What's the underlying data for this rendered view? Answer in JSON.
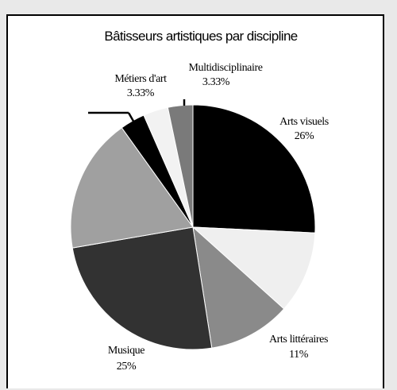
{
  "chart_data": {
    "type": "pie",
    "title": "Bâtisseurs artistiques par discipline",
    "slices": [
      {
        "label": "Arts visuels",
        "value_label": "26%",
        "value": 26,
        "color": "#000000"
      },
      {
        "label": "",
        "value_label": "",
        "value": 11,
        "color": "#efefef"
      },
      {
        "label": "Arts littéraires",
        "value_label": "11%",
        "value": 11,
        "color": "#8a8a8a"
      },
      {
        "label": "Musique",
        "value_label": "25%",
        "value": 25,
        "color": "#323232"
      },
      {
        "label": "",
        "value_label": "",
        "value": 18,
        "color": "#a0a0a0"
      },
      {
        "label": "",
        "value_label": "",
        "value": 3.33,
        "color": "#000000"
      },
      {
        "label": "Métiers d'art",
        "value_label": "3.33%",
        "value": 3.33,
        "color": "#f2f2f2"
      },
      {
        "label": "Multidisciplinaire",
        "value_label": "3.33%",
        "value": 3.33,
        "color": "#7a7a7a"
      }
    ]
  }
}
